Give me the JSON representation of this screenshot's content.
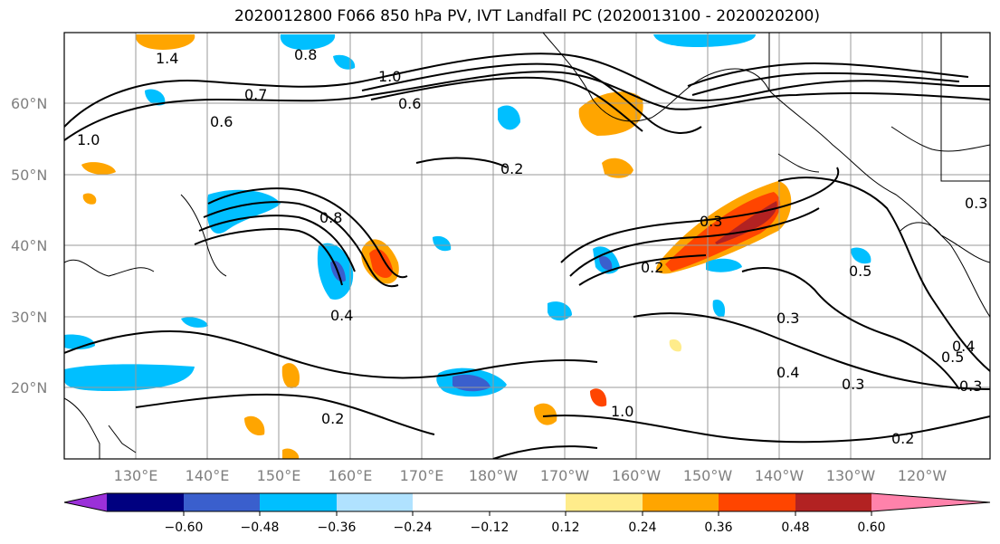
{
  "title": "2020012800 F066 850 hPa PV, IVT Landfall PC (2020013100 - 2020020200)",
  "lat_labels": [
    "60°N",
    "50°N",
    "40°N",
    "30°N",
    "20°N"
  ],
  "lon_labels": [
    "130°E",
    "140°E",
    "150°E",
    "160°E",
    "170°E",
    "180°W",
    "170°W",
    "160°W",
    "150°W",
    "140°W",
    "130°W",
    "120°W"
  ],
  "colorbar": {
    "ticks": [
      "−0.60",
      "−0.48",
      "−0.36",
      "−0.24",
      "−0.12",
      "0.12",
      "0.24",
      "0.36",
      "0.48",
      "0.60"
    ],
    "colors": [
      "#9b30d9",
      "#000080",
      "#3a5fcd",
      "#00bfff",
      "#b0e2ff",
      "#ffffff",
      "#ffec8b",
      "#ffa500",
      "#ff4500",
      "#b22222",
      "#ff82ab"
    ]
  },
  "contour_labels": [
    "1.4",
    "0.8",
    "1.0",
    "1.0",
    "0.7",
    "0.6",
    "0.6",
    "0.2",
    "0.8",
    "0.3",
    "0.2",
    "0.4",
    "0.2",
    "0.3",
    "0.4",
    "0.3",
    "0.2",
    "0.5",
    "0.3",
    "0.5",
    "0.4",
    "0.3",
    "1.0"
  ],
  "colors": {
    "gridline": "#999999",
    "contour": "#000000",
    "axis_text": "#7f7f7f"
  }
}
